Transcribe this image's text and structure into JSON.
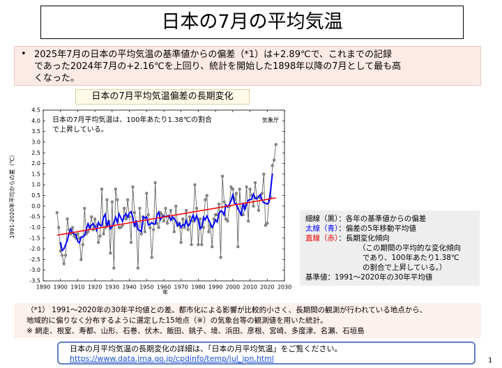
{
  "title": "日本の7月の平均気温",
  "bullet": [
    "2025年7月の日本の平均気温の基準値からの偏差（*1）は+2.89℃で、これまでの記録",
    "であった2024年7月の+2.16℃を上回り、統計を開始した1898年以降の7月として最も高",
    "くなった。"
  ],
  "chart_heading": "日本の7月平均気温偏差の長期変化",
  "chart_data": {
    "type": "line",
    "y_label": "1991-2020年平均からの差（℃）",
    "x_label": "年",
    "annotation": [
      "日本の7月平均気温は、100年あたり1.38℃の割合",
      "で上昇している。"
    ],
    "source": "気象庁",
    "xlim": [
      1890,
      2030
    ],
    "xticks": [
      1890,
      1900,
      1910,
      1920,
      1930,
      1940,
      1950,
      1960,
      1970,
      1980,
      1990,
      2000,
      2010,
      2020,
      2030
    ],
    "ylim": [
      -3.5,
      4.5
    ],
    "yticks": [
      -3.5,
      {
        "value": -3,
        "label": "-3.0"
      },
      -2.5,
      {
        "value": -2,
        "label": "-2.0"
      },
      -1.5,
      {
        "value": -1,
        "label": "-1.0"
      },
      -0.5,
      {
        "value": 0,
        "label": "0.0"
      },
      0.5,
      {
        "value": 1,
        "label": "1.0"
      },
      1.5,
      {
        "value": 2,
        "label": "2.0"
      },
      2.5,
      {
        "value": 3,
        "label": "3.0"
      },
      3.5,
      {
        "value": 4,
        "label": "4.0"
      },
      4.5
    ],
    "grid": false,
    "x": [
      1898,
      1899,
      1900,
      1901,
      1902,
      1903,
      1904,
      1905,
      1906,
      1907,
      1908,
      1909,
      1910,
      1911,
      1912,
      1913,
      1914,
      1915,
      1916,
      1917,
      1918,
      1919,
      1920,
      1921,
      1922,
      1923,
      1924,
      1925,
      1926,
      1927,
      1928,
      1929,
      1930,
      1931,
      1932,
      1933,
      1934,
      1935,
      1936,
      1937,
      1938,
      1939,
      1940,
      1941,
      1942,
      1943,
      1944,
      1945,
      1946,
      1947,
      1948,
      1949,
      1950,
      1951,
      1952,
      1953,
      1954,
      1955,
      1956,
      1957,
      1958,
      1959,
      1960,
      1961,
      1962,
      1963,
      1964,
      1965,
      1966,
      1967,
      1968,
      1969,
      1970,
      1971,
      1972,
      1973,
      1974,
      1975,
      1976,
      1977,
      1978,
      1979,
      1980,
      1981,
      1982,
      1983,
      1984,
      1985,
      1986,
      1987,
      1988,
      1989,
      1990,
      1991,
      1992,
      1993,
      1994,
      1995,
      1996,
      1997,
      1998,
      1999,
      2000,
      2001,
      2002,
      2003,
      2004,
      2005,
      2006,
      2007,
      2008,
      2009,
      2010,
      2011,
      2012,
      2013,
      2014,
      2015,
      2016,
      2017,
      2018,
      2019,
      2020,
      2021,
      2022,
      2023,
      2024,
      2025
    ],
    "series": [
      {
        "color": "#555555",
        "marker": true,
        "width": 0.8,
        "values": [
          -0.3,
          -1.0,
          -2.1,
          -2.3,
          -2.7,
          -2.3,
          -0.6,
          -1.1,
          -1.3,
          -1.0,
          -1.4,
          -1.5,
          -1.3,
          -1.5,
          -2.5,
          -1.8,
          -0.1,
          -1.3,
          -1.2,
          -1.0,
          -0.5,
          -1.1,
          -0.6,
          -0.9,
          -1.7,
          -1.4,
          0.8,
          -1.3,
          -1.0,
          0.3,
          -0.7,
          -2.2,
          0.2,
          -2.9,
          0.8,
          0.3,
          -1.0,
          -1.0,
          -0.9,
          -0.1,
          -0.6,
          0.3,
          -0.5,
          -1.7,
          0.9,
          -0.3,
          -0.9,
          -2.9,
          -0.1,
          -1.3,
          -0.5,
          -1.2,
          0.6,
          -0.4,
          -1.0,
          -2.4,
          -1.1,
          1.1,
          -0.8,
          -1.0,
          -0.3,
          -0.4,
          -0.7,
          -0.1,
          -0.8,
          -0.5,
          -0.2,
          -0.6,
          -1.2,
          0.0,
          -0.9,
          -0.8,
          -1.7,
          -0.6,
          -1.0,
          -0.2,
          -1.1,
          -0.5,
          -1.8,
          -0.7,
          1.0,
          -0.1,
          -1.8,
          -0.6,
          -1.8,
          -1.0,
          0.3,
          0.5,
          -1.2,
          -0.9,
          -1.9,
          -0.6,
          -0.4,
          -0.4,
          0.1,
          -2.4,
          1.4,
          0.2,
          -0.6,
          -0.7,
          0.0,
          0.9,
          0.8,
          0.3,
          0.6,
          -1.9,
          0.8,
          -0.4,
          -0.4,
          -0.1,
          0.9,
          -0.7,
          0.8,
          0.5,
          0.0,
          1.1,
          0.4,
          -0.2,
          0.4,
          0.6,
          1.5,
          -0.9,
          -0.8,
          0.3,
          0.4,
          1.9,
          2.16,
          2.89
        ]
      },
      {
        "color": "#0000ff",
        "marker": false,
        "width": 2,
        "values": [
          null,
          null,
          -1.68,
          -2.08,
          -2.0,
          -1.8,
          -1.6,
          -1.26,
          -1.08,
          -1.26,
          -1.3,
          -1.34,
          -1.64,
          -1.72,
          -1.44,
          -1.44,
          -1.38,
          -1.08,
          -0.82,
          -1.02,
          -0.88,
          -0.82,
          -0.96,
          -1.14,
          -0.76,
          -0.9,
          -0.92,
          -0.52,
          -0.38,
          -0.98,
          -0.68,
          -1.06,
          -0.96,
          -0.76,
          -0.52,
          -0.76,
          -0.36,
          -0.54,
          -0.72,
          -0.46,
          -0.36,
          -0.52,
          -0.32,
          -0.26,
          -0.5,
          -0.98,
          -0.66,
          -1.1,
          -1.14,
          -1.2,
          -0.5,
          -0.56,
          -0.5,
          -0.88,
          -0.86,
          -0.76,
          -0.84,
          -0.84,
          -0.42,
          -0.28,
          -0.64,
          -0.5,
          -0.46,
          -0.5,
          -0.46,
          -0.44,
          -0.66,
          -0.5,
          -0.58,
          -0.7,
          -0.92,
          -0.8,
          -1.0,
          -0.86,
          -0.92,
          -0.68,
          -0.92,
          -0.86,
          -0.62,
          -0.42,
          -0.68,
          -0.44,
          -0.66,
          -1.06,
          -0.98,
          -0.52,
          -0.64,
          -0.46,
          -0.64,
          -0.82,
          -1.0,
          -0.84,
          -0.64,
          -0.74,
          -0.34,
          -0.22,
          -0.26,
          -0.42,
          0.06,
          -0.04,
          0.08,
          0.26,
          0.52,
          0.14,
          0.12,
          -0.12,
          -0.26,
          -0.4,
          0.16,
          -0.14,
          0.1,
          0.28,
          0.3,
          0.34,
          0.56,
          0.36,
          0.34,
          0.46,
          0.54,
          0.28,
          0.16,
          0.14,
          0.1,
          0.18,
          0.79,
          1.53,
          null,
          null
        ]
      },
      {
        "color": "#ff0000",
        "marker": false,
        "width": 1.5,
        "x": [
          1898,
          2025
        ],
        "values": [
          -1.36,
          0.39
        ]
      }
    ]
  },
  "legend_notes": [
    {
      "label": "細線（黒）",
      "text": "：各年の基準値からの偏差"
    },
    {
      "label": "太線（青）",
      "text": "：偏差の5年移動平均値"
    },
    {
      "label": "直線（赤）",
      "text": "：長期変化傾向"
    }
  ],
  "legend_continuation": [
    "（この期間の平均的な変化傾向",
    "であり、100年あたり1.38℃",
    "の割合で上昇している。）"
  ],
  "baseline_note": "基準値：1991～2020年の30年平均値",
  "footnote": [
    "（*1） 1991～2020年の30年平均値との差。都市化による影響が比較的小さく、長期間の観測が行われている地点から、",
    "地域的に偏りなく分布するように選定した15地点（※）の気象台等の観測値を用いた統計。",
    "※ 網走、根室、寿都、山形、石巻、伏木、飯田、銚子、境、浜田、彦根、宮崎、多度津、名瀬、石垣島"
  ],
  "link_text": "日本の月平均気温の長期変化の詳細は、「日本の月平均気温」をご覧ください。",
  "link_url": "https://www.data.jma.go.jp/cpdinfo/temp/jul_jpn.html",
  "page_number": "1"
}
